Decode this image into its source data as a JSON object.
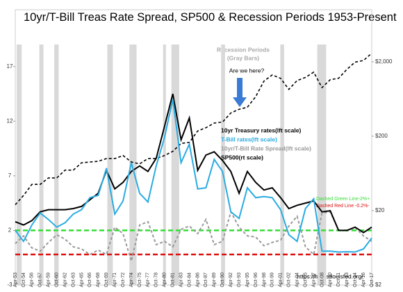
{
  "chart_data": {
    "type": "line",
    "title": "10yr/T-Bill Treas Rate Spread, SP500 & Recession Periods 1953-Present",
    "categories": [
      "Apr-53",
      "Oct-54",
      "Apr-56",
      "Oct-57",
      "Apr-59",
      "Oct-60",
      "Apr-62",
      "Oct-63",
      "Apr-65",
      "Oct-66",
      "Apr-68",
      "Oct-69",
      "Apr-71",
      "Oct-72",
      "Apr-74",
      "Oct-75",
      "Apr-77",
      "Oct-78",
      "Apr-80",
      "Oct-81",
      "Apr-83",
      "Oct-84",
      "Apr-86",
      "Oct-87",
      "Apr-89",
      "Oct-90",
      "Apr-92",
      "Oct-93",
      "Apr-95",
      "Oct-96",
      "Apr-98",
      "Oct-99",
      "Apr-01",
      "Oct-02",
      "Apr-04",
      "Oct-05",
      "Apr-07",
      "Oct-08",
      "Apr-10",
      "Oct-11",
      "Apr-13",
      "Oct-14",
      "Apr-16",
      "Oct-17"
    ],
    "series": [
      {
        "name": "10yr Treasury rates(lft scale)",
        "color": "#000000",
        "dashed": false,
        "values": [
          2.8,
          2.5,
          2.9,
          3.7,
          3.9,
          3.9,
          3.9,
          4.0,
          4.2,
          4.8,
          5.4,
          7.5,
          5.8,
          6.4,
          7.4,
          7.9,
          7.4,
          8.6,
          11.5,
          14.5,
          10.3,
          12.3,
          7.5,
          8.9,
          9.2,
          8.4,
          7.4,
          5.4,
          7.4,
          6.4,
          5.7,
          5.9,
          5.0,
          4.0,
          4.3,
          4.5,
          4.7,
          3.7,
          3.8,
          2.0,
          2.0,
          2.3,
          1.8,
          2.3
        ]
      },
      {
        "name": "T-Bill rates(lft scale)",
        "color": "#29abe2",
        "dashed": false,
        "values": [
          2.0,
          1.0,
          2.5,
          3.6,
          3.0,
          2.3,
          2.7,
          3.5,
          3.9,
          5.0,
          5.2,
          7.7,
          3.5,
          4.7,
          8.2,
          5.4,
          4.6,
          7.9,
          10.5,
          14.0,
          8.2,
          9.9,
          5.8,
          5.9,
          8.5,
          7.4,
          3.7,
          3.1,
          5.9,
          5.0,
          5.1,
          5.0,
          3.9,
          1.6,
          1.0,
          4.0,
          4.9,
          0.1,
          0.1,
          0.02,
          0.05,
          0.03,
          0.3,
          1.3
        ]
      },
      {
        "name": "10yr/T-Bill Rate Spread(lft scale)",
        "color": "#999999",
        "dashed": true,
        "values": [
          0.8,
          1.5,
          0.4,
          0.1,
          0.9,
          1.6,
          1.2,
          0.5,
          0.3,
          -0.2,
          0.2,
          -0.2,
          2.3,
          1.7,
          -0.8,
          2.5,
          2.8,
          0.7,
          1.0,
          0.5,
          2.1,
          2.4,
          1.7,
          3.0,
          0.7,
          1.0,
          3.7,
          2.3,
          1.5,
          1.4,
          0.6,
          0.9,
          1.1,
          2.4,
          3.3,
          0.5,
          -0.2,
          3.6,
          3.7,
          2.0,
          1.95,
          2.27,
          1.5,
          1.0
        ]
      },
      {
        "name": "SP500(rt scale)",
        "color": "#000000",
        "dashed": true,
        "axis": "y2",
        "values": [
          24,
          32,
          45,
          45,
          55,
          55,
          70,
          70,
          88,
          90,
          92,
          100,
          100,
          110,
          90,
          85,
          100,
          100,
          110,
          125,
          160,
          165,
          235,
          260,
          300,
          310,
          410,
          460,
          490,
          680,
          1100,
          1330,
          1200,
          850,
          1120,
          1230,
          1450,
          900,
          1150,
          1200,
          1580,
          1980,
          2080,
          2600
        ]
      }
    ],
    "ylim": [
      -3,
      22.2
    ],
    "yticks": [
      -3,
      2,
      7,
      12,
      17
    ],
    "y2lim": [
      2,
      10000
    ],
    "y2scale": "log",
    "y2ticks": [
      {
        "value": 2,
        "label": "$2"
      },
      {
        "value": 20,
        "label": "$20"
      },
      {
        "value": 200,
        "label": "$200"
      },
      {
        "value": 2000,
        "label": "$2,000"
      }
    ],
    "recessions": [
      [
        0.17,
        0.77
      ],
      [
        2.9,
        3.4
      ],
      [
        4.7,
        5.23
      ],
      [
        11.1,
        11.77
      ],
      [
        13.77,
        14.63
      ],
      [
        17.83,
        18.17
      ],
      [
        18.83,
        19.77
      ],
      [
        24.83,
        25.3
      ],
      [
        31.97,
        32.43
      ],
      [
        36.43,
        37.5
      ]
    ],
    "hlines": [
      {
        "value": 2,
        "color": "#33dd33",
        "label": "Dashed Green Line-2%+"
      },
      {
        "value": -0.2,
        "color": "#dd1111",
        "label": "Dashed Red Line -0.2%-"
      }
    ],
    "annotations": {
      "recession_note": [
        "Recession Periods",
        "(Gray Bars)"
      ],
      "question": "Are we here?",
      "source": "https://fred.stlouisfed.org/"
    }
  }
}
